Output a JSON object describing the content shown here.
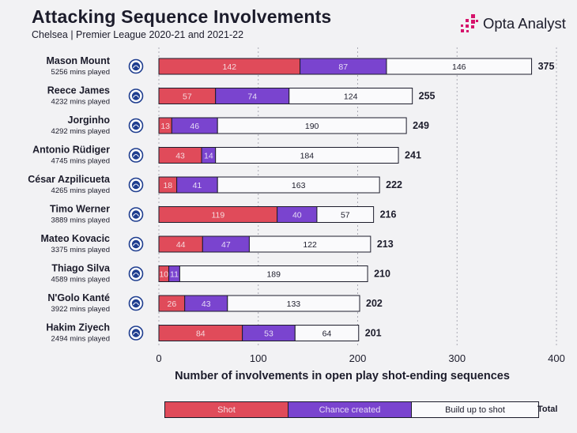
{
  "header": {
    "title": "Attacking Sequence Involvements",
    "subtitle": "Chelsea | Premier League 2020-21 and 2021-22"
  },
  "brand": {
    "logo_icon": "opta-dots-icon",
    "logo_text": "Opta Analyst",
    "accent": "#d6136b"
  },
  "colors": {
    "shot": "#e04b5a",
    "chance_created": "#7a44cf",
    "build_up": "#fafafc",
    "text": "#1c1c2b",
    "grid": "#aaaab4"
  },
  "chart_data": {
    "type": "bar",
    "orientation": "horizontal",
    "stacked": true,
    "categories": [
      "Mason Mount",
      "Reece James",
      "Jorginho",
      "Antonio Rüdiger",
      "César Azpilicueta",
      "Timo Werner",
      "Mateo Kovacic",
      "Thiago Silva",
      "N'Golo Kanté",
      "Hakim Ziyech"
    ],
    "minutes": [
      "5256 mins played",
      "4232 mins played",
      "4292 mins played",
      "4745 mins played",
      "4265 mins played",
      "3889 mins played",
      "3375 mins played",
      "4589 mins played",
      "3922 mins played",
      "2494 mins played"
    ],
    "series": [
      {
        "name": "Shot",
        "values": [
          142,
          57,
          13,
          43,
          18,
          119,
          44,
          10,
          26,
          84
        ]
      },
      {
        "name": "Chance created",
        "values": [
          87,
          74,
          46,
          14,
          41,
          40,
          47,
          11,
          43,
          53
        ]
      },
      {
        "name": "Build up to shot",
        "values": [
          146,
          124,
          190,
          184,
          163,
          57,
          122,
          189,
          133,
          64
        ]
      }
    ],
    "totals": [
      375,
      255,
      249,
      241,
      222,
      216,
      213,
      210,
      202,
      201
    ],
    "total_label": "Total",
    "xlabel": "Number of involvements in open play shot-ending sequences",
    "xlim": [
      0,
      400
    ],
    "xticks": [
      "0",
      "100",
      "200",
      "300",
      "400"
    ],
    "grid": "vertical dashed",
    "badge_icon": "chelsea-crest-icon"
  }
}
